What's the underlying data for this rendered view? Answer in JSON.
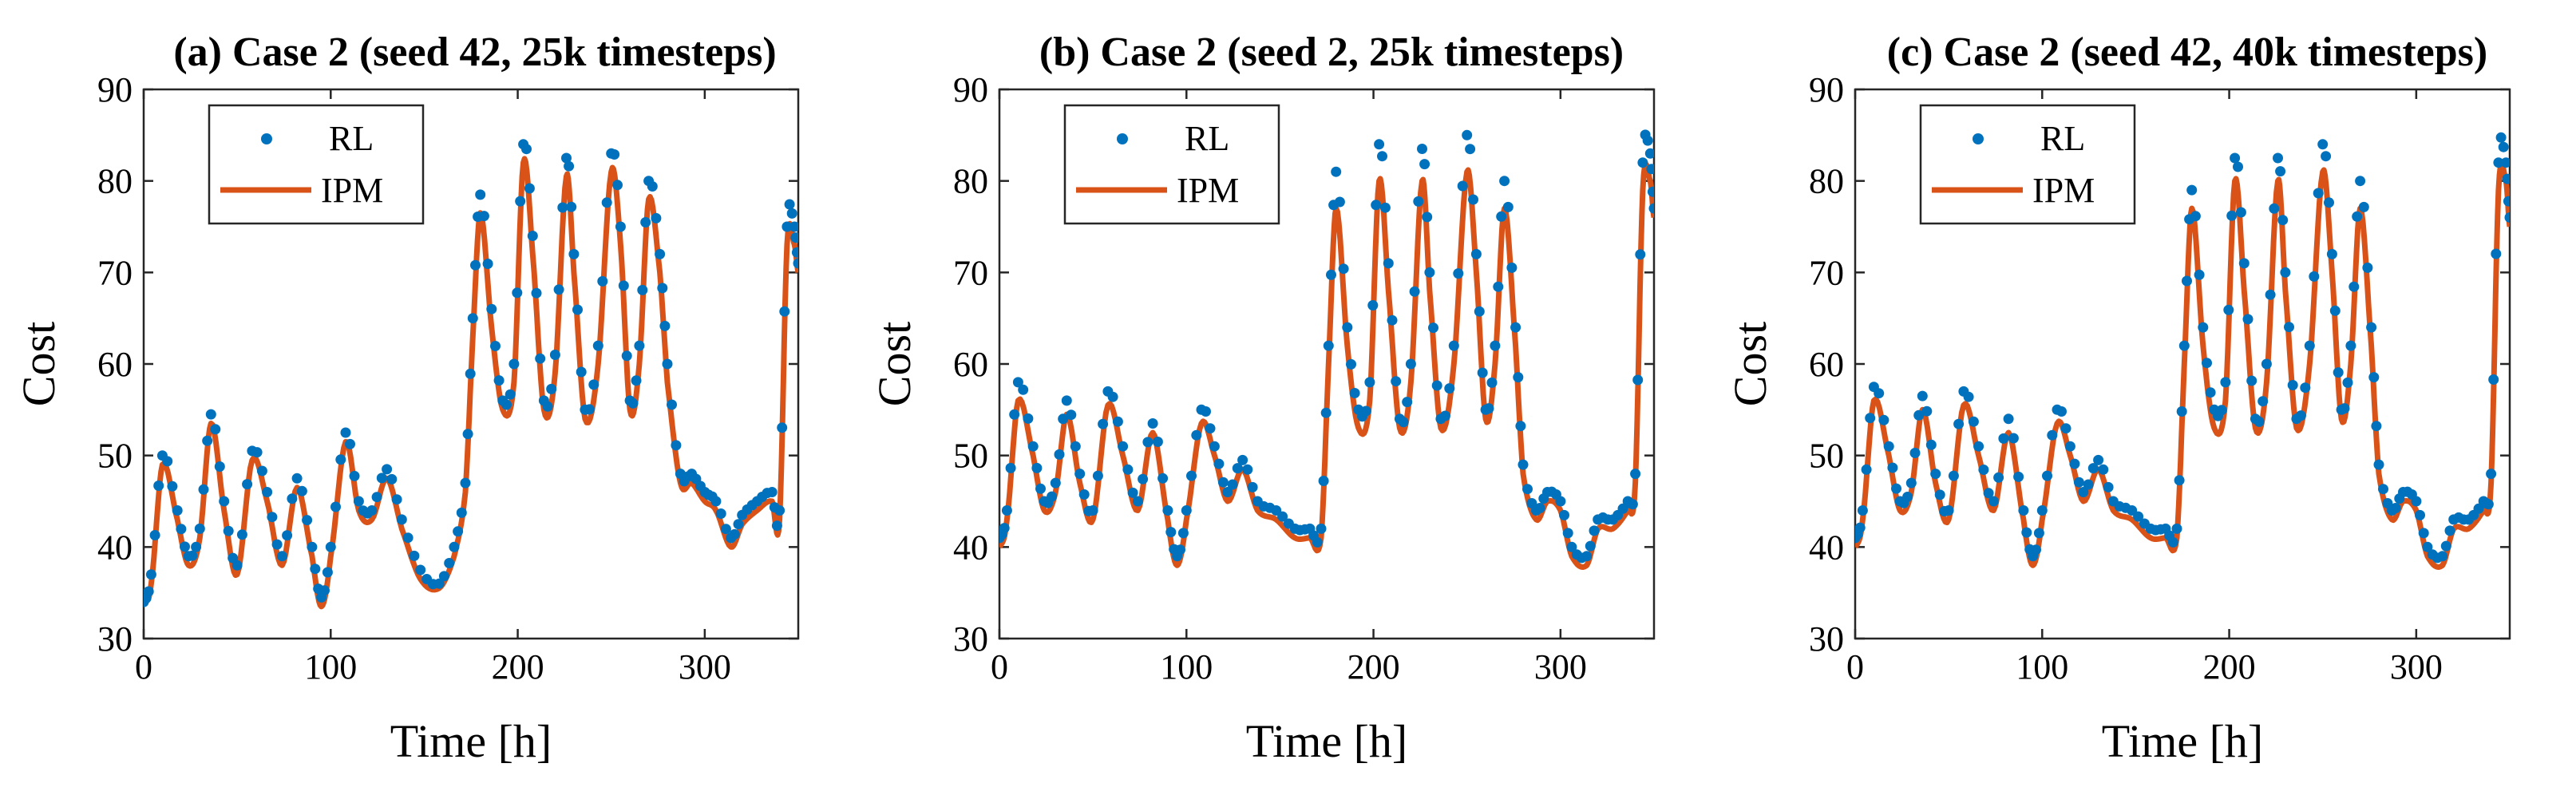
{
  "colors": {
    "rl": "#0072BD",
    "ipm": "#D95319",
    "axis": "#262626"
  },
  "chart_data": [
    {
      "type": "line",
      "title": "(a) Case 2 (seed 42, 25k timesteps)",
      "xlabel": "Time [h]",
      "ylabel": "Cost",
      "xlim": [
        0,
        350
      ],
      "ylim": [
        30,
        90
      ],
      "xticks": [
        0,
        100,
        200,
        300
      ],
      "yticks": [
        30,
        40,
        50,
        60,
        70,
        80,
        90
      ],
      "grid": false,
      "legend": "top-left",
      "series": [
        {
          "name": "RL",
          "style": "dots",
          "x": [
            0,
            4,
            10,
            18,
            24,
            30,
            36,
            43,
            50,
            58,
            66,
            74,
            82,
            90,
            95,
            100,
            108,
            115,
            122,
            130,
            138,
            148,
            158,
            166,
            172,
            176,
            180,
            186,
            192,
            198,
            203,
            208,
            214,
            220,
            226,
            230,
            236,
            243,
            250,
            255,
            260,
            265,
            270,
            276,
            280,
            287,
            293,
            300,
            306,
            314,
            320,
            328,
            336,
            340,
            344,
            348,
            350
          ],
          "values": [
            34,
            37,
            50,
            44,
            39,
            42,
            54.5,
            45,
            38,
            50.5,
            46,
            39,
            47.5,
            40,
            34.5,
            40,
            52.5,
            45,
            44,
            48.5,
            43,
            37.5,
            36,
            40,
            47,
            65,
            78.5,
            66,
            56,
            60,
            84,
            74,
            56,
            61,
            82.5,
            72,
            55,
            62,
            83,
            75,
            56,
            62,
            80,
            72,
            60,
            48,
            48,
            46,
            45,
            41,
            43.5,
            45,
            46,
            44,
            75,
            75,
            71
          ]
        },
        {
          "name": "IPM",
          "style": "line",
          "x": [
            0,
            4,
            10,
            18,
            24,
            30,
            36,
            43,
            50,
            58,
            66,
            74,
            82,
            90,
            95,
            100,
            108,
            115,
            122,
            130,
            138,
            148,
            158,
            166,
            172,
            176,
            180,
            186,
            192,
            198,
            203,
            208,
            214,
            220,
            226,
            230,
            236,
            243,
            250,
            255,
            260,
            265,
            270,
            276,
            280,
            287,
            293,
            300,
            306,
            314,
            320,
            328,
            336,
            340,
            344,
            348,
            350
          ],
          "values": [
            34,
            36,
            49,
            43,
            38,
            41,
            53.5,
            44,
            37,
            49.5,
            45,
            38,
            46.5,
            39,
            33.5,
            39,
            51.5,
            44,
            43,
            47.5,
            42,
            36.5,
            35.5,
            39,
            46,
            63,
            76.5,
            64,
            55,
            58,
            82,
            72,
            55,
            59,
            80.5,
            70,
            54,
            60,
            81,
            73,
            55,
            60,
            78,
            70,
            58,
            47,
            47,
            45,
            44,
            40,
            42.5,
            44,
            45,
            43,
            73,
            73,
            70
          ]
        }
      ]
    },
    {
      "type": "line",
      "title": "(b) Case 2 (seed 2, 25k timesteps)",
      "xlabel": "Time [h]",
      "ylabel": "Cost",
      "xlim": [
        0,
        350
      ],
      "ylim": [
        30,
        90
      ],
      "xticks": [
        0,
        100,
        200,
        300
      ],
      "yticks": [
        30,
        40,
        50,
        60,
        70,
        80,
        90
      ],
      "grid": false,
      "legend": "top-left",
      "series": [
        {
          "name": "RL",
          "style": "dots",
          "x": [
            0,
            4,
            10,
            18,
            24,
            30,
            36,
            43,
            50,
            58,
            66,
            74,
            82,
            90,
            95,
            100,
            108,
            115,
            122,
            130,
            138,
            148,
            158,
            166,
            172,
            176,
            180,
            186,
            192,
            198,
            203,
            208,
            214,
            220,
            226,
            230,
            236,
            243,
            250,
            255,
            260,
            265,
            270,
            276,
            280,
            287,
            293,
            300,
            306,
            314,
            320,
            328,
            336,
            340,
            344,
            348,
            350
          ],
          "values": [
            41,
            44,
            58,
            51,
            45,
            47,
            56,
            48,
            44,
            57,
            51,
            45,
            53.5,
            44,
            39,
            44,
            55,
            51,
            46,
            49.5,
            45,
            44,
            42,
            42,
            42,
            62,
            81,
            64,
            55,
            58,
            84,
            71,
            54,
            60,
            83.5,
            70,
            54,
            62,
            85,
            72,
            55,
            62,
            80,
            64,
            49,
            44,
            46,
            45,
            40,
            39,
            43,
            43,
            45,
            48,
            82,
            83,
            77
          ]
        },
        {
          "name": "IPM",
          "style": "line",
          "x": [
            0,
            4,
            10,
            18,
            24,
            30,
            36,
            43,
            50,
            58,
            66,
            74,
            82,
            90,
            95,
            100,
            108,
            115,
            122,
            130,
            138,
            148,
            158,
            166,
            172,
            176,
            180,
            186,
            192,
            198,
            203,
            208,
            214,
            220,
            226,
            230,
            236,
            243,
            250,
            255,
            260,
            265,
            270,
            276,
            280,
            287,
            293,
            300,
            306,
            314,
            320,
            328,
            336,
            340,
            344,
            348,
            350
          ],
          "values": [
            40,
            43,
            56,
            50,
            44,
            46,
            54.5,
            47,
            43,
            55.5,
            50,
            44,
            52.5,
            43,
            38,
            43,
            53.5,
            50,
            45,
            48.5,
            44,
            43,
            41,
            41,
            41,
            60,
            77,
            62,
            53,
            56,
            80,
            68,
            53,
            58,
            80,
            68,
            53,
            60,
            81,
            70,
            54,
            60,
            77,
            62,
            48,
            43,
            45,
            44,
            39,
            38,
            42,
            42,
            44,
            47,
            79,
            80,
            76
          ]
        }
      ]
    },
    {
      "type": "line",
      "title": "(c) Case 2 (seed 42, 40k timesteps)",
      "xlabel": "Time [h]",
      "ylabel": "Cost",
      "xlim": [
        0,
        350
      ],
      "ylim": [
        30,
        90
      ],
      "xticks": [
        0,
        100,
        200,
        300
      ],
      "yticks": [
        30,
        40,
        50,
        60,
        70,
        80,
        90
      ],
      "grid": false,
      "legend": "top-left",
      "series": [
        {
          "name": "RL",
          "style": "dots",
          "x": [
            0,
            4,
            10,
            18,
            24,
            30,
            36,
            43,
            50,
            58,
            66,
            74,
            82,
            90,
            95,
            100,
            108,
            115,
            122,
            130,
            138,
            148,
            158,
            166,
            172,
            176,
            180,
            186,
            192,
            198,
            203,
            208,
            214,
            220,
            226,
            230,
            236,
            243,
            250,
            255,
            260,
            265,
            270,
            276,
            280,
            287,
            293,
            300,
            306,
            314,
            320,
            328,
            336,
            340,
            344,
            348,
            350
          ],
          "values": [
            41,
            44,
            57.5,
            51,
            45,
            47,
            56.5,
            48,
            44,
            57,
            51,
            45,
            54,
            44,
            39,
            44,
            55,
            51,
            46,
            49.5,
            45,
            44,
            42,
            42,
            42,
            62,
            79,
            64,
            55,
            58,
            82.5,
            71,
            54,
            60,
            82.5,
            70,
            54,
            62,
            84,
            72,
            55,
            62,
            80,
            64,
            49,
            44,
            46,
            45,
            40,
            39,
            43,
            43,
            45,
            48,
            82,
            82,
            76
          ]
        },
        {
          "name": "IPM",
          "style": "line",
          "x": [
            0,
            4,
            10,
            18,
            24,
            30,
            36,
            43,
            50,
            58,
            66,
            74,
            82,
            90,
            95,
            100,
            108,
            115,
            122,
            130,
            138,
            148,
            158,
            166,
            172,
            176,
            180,
            186,
            192,
            198,
            203,
            208,
            214,
            220,
            226,
            230,
            236,
            243,
            250,
            255,
            260,
            265,
            270,
            276,
            280,
            287,
            293,
            300,
            306,
            314,
            320,
            328,
            336,
            340,
            344,
            348,
            350
          ],
          "values": [
            40,
            43,
            56,
            50,
            44,
            46,
            55,
            47,
            43,
            55.5,
            50,
            44,
            52.5,
            43,
            38,
            43,
            53.5,
            50,
            45,
            48.5,
            44,
            43,
            41,
            41,
            41,
            60,
            77,
            62,
            53,
            56,
            80,
            68,
            53,
            58,
            80,
            68,
            53,
            60,
            81,
            70,
            54,
            60,
            77,
            62,
            48,
            43,
            45,
            44,
            39,
            38,
            42,
            42,
            44,
            47,
            79,
            80,
            75
          ]
        }
      ]
    }
  ]
}
